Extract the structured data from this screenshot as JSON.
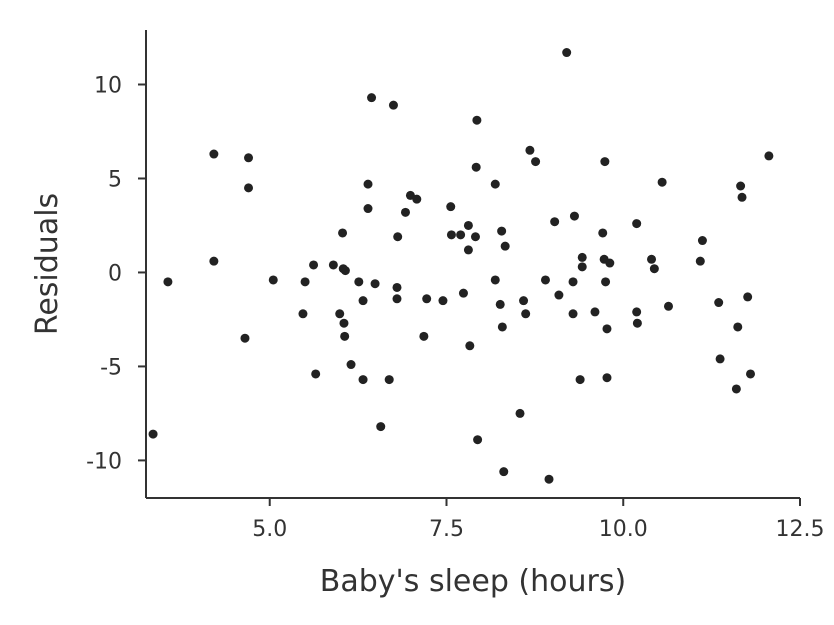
{
  "chart_data": {
    "type": "scatter",
    "xlabel": "Baby's sleep (hours)",
    "ylabel": "Residuals",
    "xlim": [
      3.25,
      12.5
    ],
    "ylim": [
      -12.0,
      12.9
    ],
    "x_ticks": [
      5.0,
      7.5,
      10.0,
      12.5
    ],
    "x_tick_labels": [
      "5.0",
      "7.5",
      "10.0",
      "12.5"
    ],
    "y_ticks": [
      -10,
      -5,
      0,
      5,
      10
    ],
    "y_tick_labels": [
      "-10",
      "-5",
      "0",
      "5",
      "10"
    ],
    "grid": false,
    "point_color": "#222222",
    "points": [
      {
        "x": 3.35,
        "y": -8.6
      },
      {
        "x": 3.56,
        "y": -0.5
      },
      {
        "x": 4.21,
        "y": 6.3
      },
      {
        "x": 4.21,
        "y": 0.6
      },
      {
        "x": 4.65,
        "y": -3.5
      },
      {
        "x": 4.7,
        "y": 6.1
      },
      {
        "x": 4.7,
        "y": 4.5
      },
      {
        "x": 5.05,
        "y": -0.4
      },
      {
        "x": 5.47,
        "y": -2.2
      },
      {
        "x": 5.5,
        "y": -0.5
      },
      {
        "x": 5.62,
        "y": 0.4
      },
      {
        "x": 5.65,
        "y": -5.4
      },
      {
        "x": 5.9,
        "y": 0.4
      },
      {
        "x": 5.99,
        "y": -2.2
      },
      {
        "x": 6.03,
        "y": 2.1
      },
      {
        "x": 6.04,
        "y": 0.2
      },
      {
        "x": 6.05,
        "y": -2.7
      },
      {
        "x": 6.06,
        "y": -3.4
      },
      {
        "x": 6.07,
        "y": 0.1
      },
      {
        "x": 6.15,
        "y": -4.9
      },
      {
        "x": 6.26,
        "y": -0.5
      },
      {
        "x": 6.32,
        "y": -1.5
      },
      {
        "x": 6.32,
        "y": -5.7
      },
      {
        "x": 6.39,
        "y": 4.7
      },
      {
        "x": 6.39,
        "y": 3.4
      },
      {
        "x": 6.44,
        "y": 9.3
      },
      {
        "x": 6.49,
        "y": -0.6
      },
      {
        "x": 6.57,
        "y": -8.2
      },
      {
        "x": 6.69,
        "y": -5.7
      },
      {
        "x": 6.75,
        "y": 8.9
      },
      {
        "x": 6.8,
        "y": -0.8
      },
      {
        "x": 6.8,
        "y": -1.4
      },
      {
        "x": 6.81,
        "y": 1.9
      },
      {
        "x": 6.92,
        "y": 3.2
      },
      {
        "x": 6.99,
        "y": 4.1
      },
      {
        "x": 7.08,
        "y": 3.9
      },
      {
        "x": 7.18,
        "y": -3.4
      },
      {
        "x": 7.22,
        "y": -1.4
      },
      {
        "x": 7.45,
        "y": -1.5
      },
      {
        "x": 7.56,
        "y": 3.5
      },
      {
        "x": 7.57,
        "y": 2.0
      },
      {
        "x": 7.7,
        "y": 2.0
      },
      {
        "x": 7.74,
        "y": -1.1
      },
      {
        "x": 7.81,
        "y": 2.5
      },
      {
        "x": 7.81,
        "y": 1.2
      },
      {
        "x": 7.83,
        "y": -3.9
      },
      {
        "x": 7.91,
        "y": 1.9
      },
      {
        "x": 7.92,
        "y": 5.6
      },
      {
        "x": 7.93,
        "y": 8.1
      },
      {
        "x": 7.94,
        "y": -8.9
      },
      {
        "x": 8.19,
        "y": 4.7
      },
      {
        "x": 8.19,
        "y": -0.4
      },
      {
        "x": 8.26,
        "y": -1.7
      },
      {
        "x": 8.28,
        "y": 2.2
      },
      {
        "x": 8.29,
        "y": -2.9
      },
      {
        "x": 8.31,
        "y": -10.6
      },
      {
        "x": 8.33,
        "y": 1.4
      },
      {
        "x": 8.54,
        "y": -7.5
      },
      {
        "x": 8.59,
        "y": -1.5
      },
      {
        "x": 8.62,
        "y": -2.2
      },
      {
        "x": 8.68,
        "y": 6.5
      },
      {
        "x": 8.76,
        "y": 5.9
      },
      {
        "x": 8.9,
        "y": -0.4
      },
      {
        "x": 8.95,
        "y": -11.0
      },
      {
        "x": 9.03,
        "y": 2.7
      },
      {
        "x": 9.09,
        "y": -1.2
      },
      {
        "x": 9.2,
        "y": 11.7
      },
      {
        "x": 9.29,
        "y": -0.5
      },
      {
        "x": 9.29,
        "y": -2.2
      },
      {
        "x": 9.31,
        "y": 3.0
      },
      {
        "x": 9.39,
        "y": -5.7
      },
      {
        "x": 9.42,
        "y": 0.3
      },
      {
        "x": 9.42,
        "y": 0.8
      },
      {
        "x": 9.6,
        "y": -2.1
      },
      {
        "x": 9.71,
        "y": 2.1
      },
      {
        "x": 9.73,
        "y": 0.7
      },
      {
        "x": 9.74,
        "y": 5.9
      },
      {
        "x": 9.75,
        "y": -0.5
      },
      {
        "x": 9.77,
        "y": -3.0
      },
      {
        "x": 9.77,
        "y": -5.6
      },
      {
        "x": 9.81,
        "y": 0.5
      },
      {
        "x": 10.19,
        "y": 2.6
      },
      {
        "x": 10.19,
        "y": -2.1
      },
      {
        "x": 10.2,
        "y": -2.7
      },
      {
        "x": 10.4,
        "y": 0.7
      },
      {
        "x": 10.44,
        "y": 0.2
      },
      {
        "x": 10.55,
        "y": 4.8
      },
      {
        "x": 10.64,
        "y": -1.8
      },
      {
        "x": 11.09,
        "y": 0.6
      },
      {
        "x": 11.12,
        "y": 1.7
      },
      {
        "x": 11.35,
        "y": -1.6
      },
      {
        "x": 11.37,
        "y": -4.6
      },
      {
        "x": 11.6,
        "y": -6.2
      },
      {
        "x": 11.62,
        "y": -2.9
      },
      {
        "x": 11.66,
        "y": 4.6
      },
      {
        "x": 11.68,
        "y": 4.0
      },
      {
        "x": 11.76,
        "y": -1.3
      },
      {
        "x": 11.8,
        "y": -5.4
      },
      {
        "x": 12.06,
        "y": 6.2
      }
    ]
  }
}
